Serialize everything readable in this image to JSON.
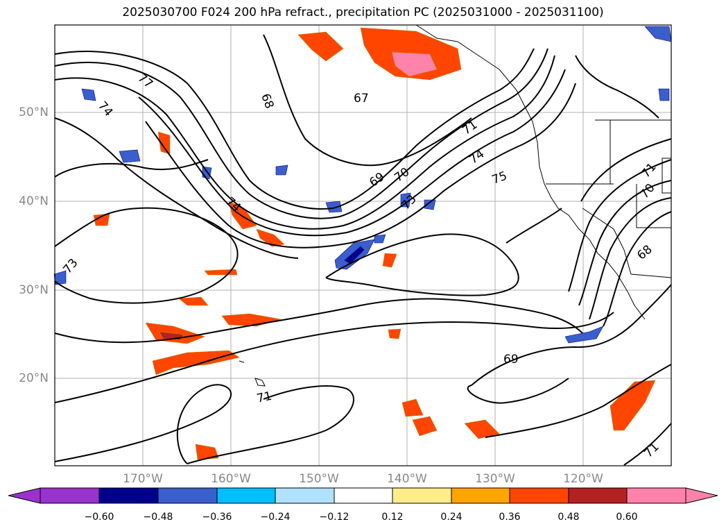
{
  "title": "2025030700 F024 200 hPa refract., precipitation PC (2025031000 - 2025031100)",
  "lon_ticks": [
    "170°W",
    "160°W",
    "150°W",
    "140°W",
    "130°W",
    "120°W"
  ],
  "lat_ticks": [
    "50°N",
    "40°N",
    "30°N",
    "20°N"
  ],
  "contour_labels": [
    "77",
    "74",
    "68",
    "67",
    "71",
    "74",
    "75",
    "69",
    "70",
    "73",
    "74",
    "73",
    "71",
    "70",
    "68",
    "69",
    "71",
    "71"
  ],
  "colorbar": {
    "ticks": [
      "−0.60",
      "−0.48",
      "−0.36",
      "−0.24",
      "−0.12",
      "0.12",
      "0.24",
      "0.36",
      "0.48",
      "0.60"
    ],
    "colors": [
      "#9a32cd",
      "#00008b",
      "#3a5fcd",
      "#00bfff",
      "#b0e2ff",
      "#ffffff",
      "#ffec8b",
      "#ffa500",
      "#ff4500",
      "#b22222",
      "#ff82ab"
    ]
  }
}
